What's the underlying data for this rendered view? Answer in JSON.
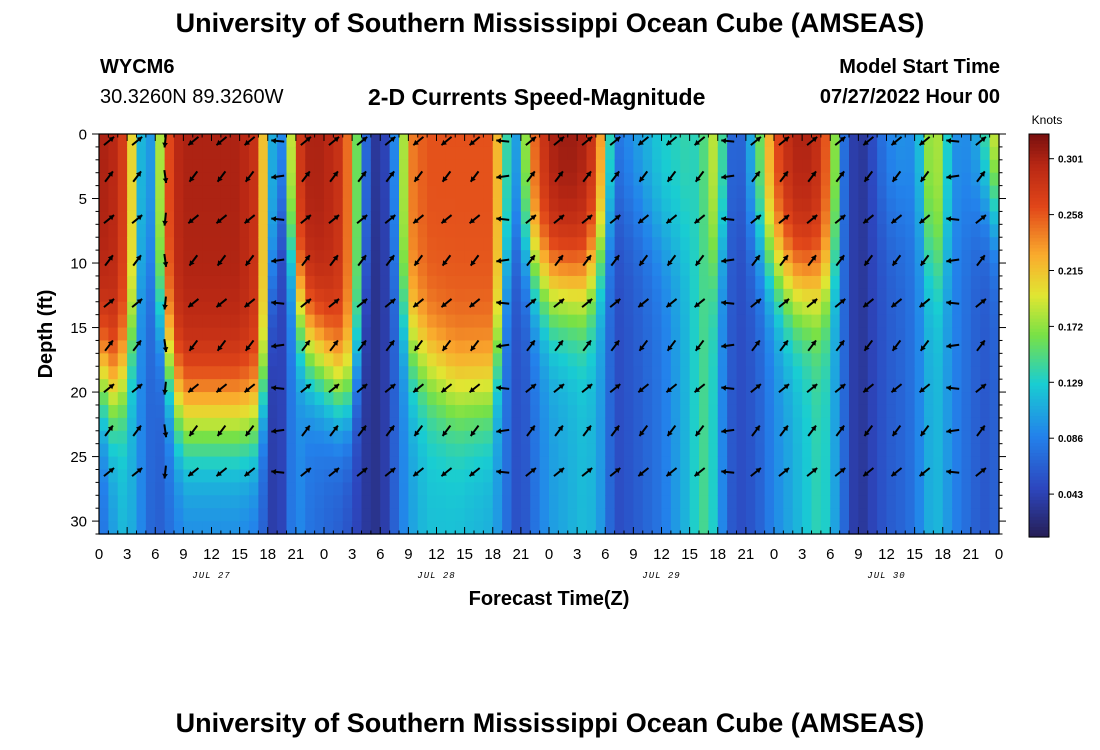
{
  "header": {
    "title": "University of Southern Mississippi Ocean Cube (AMSEAS)",
    "station": "WYCM6",
    "coordinates": "30.3260N  89.3260W",
    "subtitle": "2-D Currents Speed-Magnitude",
    "model_start_label": "Model Start Time",
    "model_start_value": "07/27/2022 Hour 00"
  },
  "footer": {
    "title": "University of Southern Mississippi Ocean Cube (AMSEAS)"
  },
  "chart_data": {
    "type": "heatmap",
    "title": "2-D Currents Speed-Magnitude",
    "xlabel": "Forecast Time(Z)",
    "ylabel": "Depth (ft)",
    "xlim": [
      0,
      96
    ],
    "ylim": [
      0,
      31
    ],
    "x_ticks": [
      0,
      3,
      6,
      9,
      12,
      15,
      18,
      21,
      24,
      27,
      30,
      33,
      36,
      39,
      42,
      45,
      48,
      51,
      54,
      57,
      60,
      63,
      66,
      69,
      72,
      75,
      78,
      81,
      84,
      87,
      90,
      93,
      96
    ],
    "x_tick_labels": [
      "0",
      "3",
      "6",
      "9",
      "12",
      "15",
      "18",
      "21",
      "0",
      "3",
      "6",
      "9",
      "12",
      "15",
      "18",
      "21",
      "0",
      "3",
      "6",
      "9",
      "12",
      "15",
      "18",
      "21",
      "0",
      "3",
      "6",
      "9",
      "12",
      "15",
      "18",
      "21",
      "0"
    ],
    "date_labels": [
      {
        "label": "JUL 27",
        "hour": 12
      },
      {
        "label": "JUL 28",
        "hour": 36
      },
      {
        "label": "JUL 29",
        "hour": 60
      },
      {
        "label": "JUL 30",
        "hour": 84
      }
    ],
    "y_ticks": [
      0,
      5,
      10,
      15,
      20,
      25,
      30
    ],
    "y_tick_labels": [
      "0",
      "5",
      "10",
      "15",
      "20",
      "25",
      "30"
    ],
    "colorbar": {
      "label": "Knots",
      "range": [
        0.01,
        0.32
      ],
      "ticks": [
        0.043,
        0.086,
        0.129,
        0.172,
        0.215,
        0.258,
        0.301
      ],
      "tick_labels": [
        "0.043",
        "0.086",
        "0.129",
        "0.172",
        "0.215",
        "0.258",
        "0.301"
      ]
    },
    "depth_levels_ft": [
      0,
      3.3,
      6.6,
      9.8,
      13.1,
      16.4,
      19.7,
      23,
      26.2,
      29.5
    ],
    "hour_anchors": [
      0,
      1,
      2,
      3,
      4,
      5,
      6,
      7,
      8,
      9,
      12,
      15,
      17,
      18,
      19,
      20,
      21,
      22,
      24,
      26,
      27,
      28,
      29,
      30,
      31,
      32,
      33,
      35,
      38,
      42,
      43,
      44,
      45,
      46,
      48,
      50,
      52,
      53,
      54,
      55,
      57,
      60,
      63,
      64,
      65,
      66,
      67,
      68,
      70,
      72,
      74,
      76,
      77,
      78,
      79,
      80,
      81,
      82,
      84,
      86,
      87,
      88,
      89,
      90,
      91,
      92,
      93,
      94,
      95,
      96
    ],
    "speed_surface_knots": [
      0.3,
      0.3,
      0.29,
      0.26,
      0.15,
      0.08,
      0.12,
      0.24,
      0.29,
      0.3,
      0.3,
      0.3,
      0.28,
      0.15,
      0.07,
      0.12,
      0.26,
      0.3,
      0.3,
      0.28,
      0.22,
      0.1,
      0.04,
      0.03,
      0.06,
      0.12,
      0.24,
      0.26,
      0.26,
      0.26,
      0.18,
      0.1,
      0.11,
      0.24,
      0.3,
      0.31,
      0.3,
      0.27,
      0.2,
      0.08,
      0.1,
      0.13,
      0.14,
      0.13,
      0.17,
      0.2,
      0.09,
      0.05,
      0.13,
      0.26,
      0.3,
      0.3,
      0.28,
      0.24,
      0.1,
      0.05,
      0.03,
      0.04,
      0.09,
      0.1,
      0.09,
      0.15,
      0.2,
      0.16,
      0.1,
      0.09,
      0.1,
      0.12,
      0.18,
      0.22
    ],
    "speed_bottom_knots": [
      0.07,
      0.09,
      0.11,
      0.12,
      0.1,
      0.08,
      0.06,
      0.07,
      0.08,
      0.09,
      0.09,
      0.09,
      0.08,
      0.05,
      0.03,
      0.06,
      0.1,
      0.08,
      0.07,
      0.06,
      0.05,
      0.04,
      0.03,
      0.03,
      0.05,
      0.08,
      0.1,
      0.12,
      0.12,
      0.11,
      0.09,
      0.06,
      0.05,
      0.07,
      0.1,
      0.11,
      0.12,
      0.11,
      0.09,
      0.05,
      0.06,
      0.08,
      0.12,
      0.14,
      0.15,
      0.11,
      0.07,
      0.05,
      0.06,
      0.09,
      0.11,
      0.13,
      0.14,
      0.12,
      0.09,
      0.05,
      0.03,
      0.04,
      0.06,
      0.07,
      0.08,
      0.1,
      0.12,
      0.11,
      0.09,
      0.08,
      0.07,
      0.06,
      0.06,
      0.07
    ],
    "surface_layer_depth_ft": [
      18,
      20,
      20,
      18,
      14,
      9,
      12,
      16,
      20,
      22,
      22,
      22,
      22,
      18,
      6,
      6,
      12,
      16,
      18,
      20,
      20,
      16,
      8,
      5,
      8,
      12,
      16,
      18,
      20,
      20,
      14,
      8,
      8,
      10,
      12,
      12,
      12,
      10,
      8,
      5,
      6,
      8,
      8,
      8,
      10,
      10,
      6,
      5,
      8,
      10,
      12,
      12,
      12,
      11,
      9,
      5,
      4,
      4,
      6,
      6,
      6,
      8,
      10,
      10,
      8,
      6,
      6,
      5,
      5,
      6
    ],
    "vector_times_h": [
      0,
      3,
      6,
      9,
      12,
      15,
      18,
      21,
      24,
      27,
      30,
      33,
      36,
      39,
      42,
      45,
      48,
      51,
      54,
      57,
      60,
      63,
      66,
      69,
      72,
      75,
      78,
      81,
      84,
      87,
      90,
      93
    ],
    "vector_depths_ft": [
      0,
      3.3,
      6.6,
      9.8,
      13.1,
      16.4,
      19.7,
      23,
      26.2
    ],
    "vector_direction_deg": [
      45,
      45,
      270,
      225,
      225,
      225,
      180,
      45,
      45,
      45,
      45,
      225,
      225,
      225,
      180,
      45,
      45,
      45,
      45,
      225,
      225,
      225,
      180,
      45,
      45,
      45,
      45,
      225,
      225,
      225,
      180,
      45
    ]
  }
}
